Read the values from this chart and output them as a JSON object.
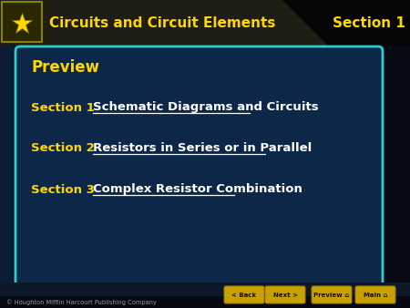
{
  "title_bar_text": "Circuits and Circuit Elements",
  "section_label": "Section 1",
  "title_color": "#FFD700",
  "header_bg_left": "#2a2a1a",
  "header_bg_right": "#0a0a14",
  "main_bg_color": "#0d1b35",
  "card_bg_color": "#0d2748",
  "card_border_color": "#2ecccc",
  "preview_label": "Preview",
  "preview_color": "#FFD700",
  "sections": [
    {
      "label": "Section 1",
      "link": "Schematic Diagrams and Circuits"
    },
    {
      "label": "Section 2",
      "link": "Resistors in Series or in Parallel"
    },
    {
      "label": "Section 3",
      "link": "Complex Resistor Combination"
    }
  ],
  "section_label_color": "#FFD700",
  "link_color": "#FFFFFF",
  "footer_text": "© Houghton Mifflin Harcourt Publishing Company",
  "footer_color": "#999999",
  "button_labels": [
    "< Back",
    "Next >",
    "Preview  ⌂",
    "Main  ⌂"
  ],
  "button_bg": "#C8A000",
  "button_text_color": "#111111",
  "logo_star_color": "#FFD700",
  "logo_bg": "#2a2800",
  "logo_border": "#8a8000"
}
